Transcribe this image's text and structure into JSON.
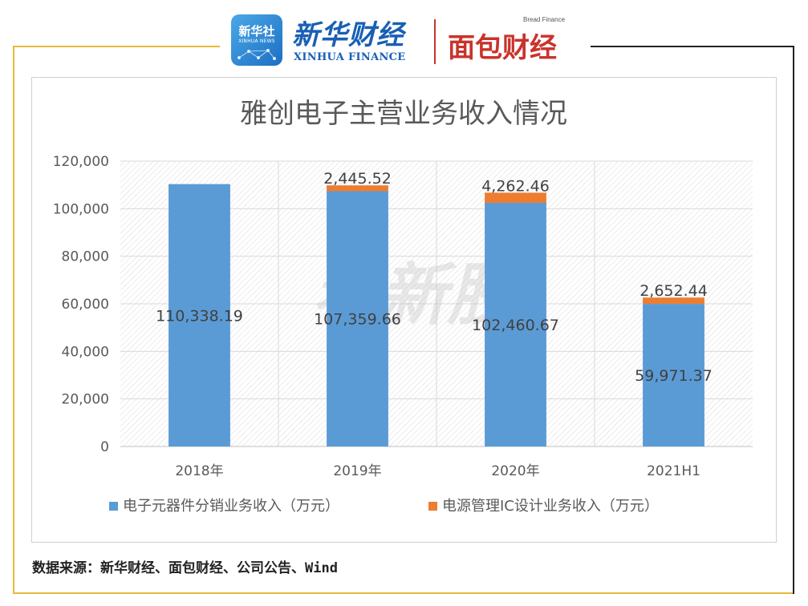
{
  "header": {
    "xinhua_badge_cn": "新华社",
    "xinhua_badge_en": "XINHUA NEWS",
    "xinhua_name": "新华财经",
    "xinhua_name_en": "XINHUA FINANCE",
    "bread_en": "Bread Finance",
    "bread_name": "面包财经"
  },
  "chart_data": {
    "type": "bar",
    "stacked": true,
    "title": "雅创电子主营业务收入情况",
    "categories": [
      "2018年",
      "2019年",
      "2020年",
      "2021H1"
    ],
    "series": [
      {
        "name": "电子元器件分销业务收入（万元）",
        "values": [
          110338.19,
          107359.66,
          102460.67,
          59971.37
        ],
        "labels": [
          "110,338.19",
          "107,359.66",
          "102,460.67",
          "59,971.37"
        ],
        "color": "#5b9bd5"
      },
      {
        "name": "电源管理IC设计业务收入（万元）",
        "values": [
          0,
          2445.52,
          4262.46,
          2652.44
        ],
        "labels": [
          "",
          "2,445.52",
          "4,262.46",
          "2,652.44"
        ],
        "color": "#ed7d31"
      }
    ],
    "ylim": [
      0,
      120000
    ],
    "yticks": [
      0,
      20000,
      40000,
      60000,
      80000,
      100000,
      120000
    ],
    "ytick_labels": [
      "0",
      "20,000",
      "40,000",
      "60,000",
      "80,000",
      "100,000",
      "120,000"
    ],
    "grid": true,
    "legend": "bottom"
  },
  "watermark": "看新股",
  "source": "数据来源：新华财经、面包财经、公司公告、Wind"
}
